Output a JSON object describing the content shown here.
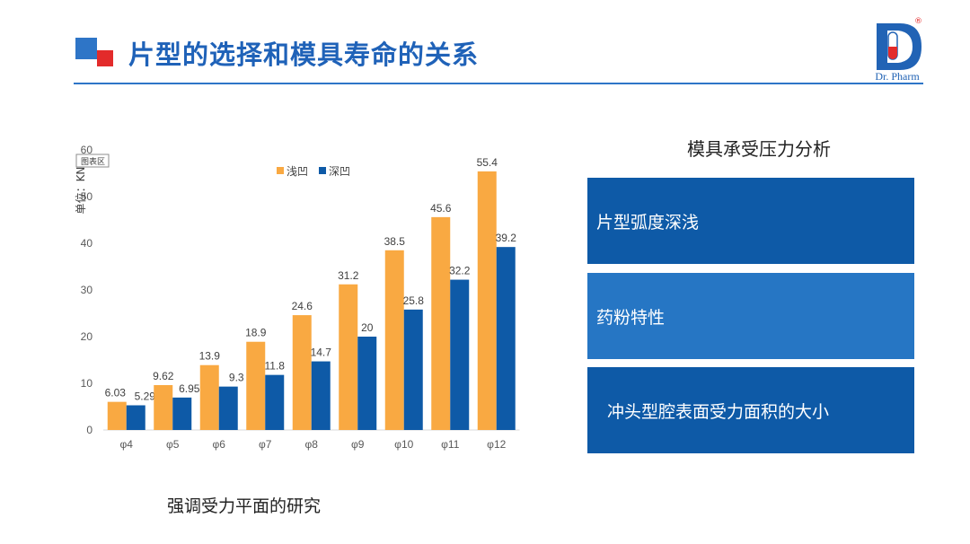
{
  "header": {
    "title": "片型的选择和模具寿命的关系",
    "logo_text": "Dr. Pharm",
    "logo_mark": "®"
  },
  "colors": {
    "accent_blue": "#2e75c7",
    "accent_red": "#e32b2b",
    "series_shallow": "#f9a942",
    "series_deep": "#0e5aa7",
    "box_dark": "#0e5aa7",
    "box_mid": "#2676c4"
  },
  "chart_data": {
    "type": "bar",
    "categories": [
      "φ4",
      "φ5",
      "φ6",
      "φ7",
      "φ8",
      "φ9",
      "φ10",
      "φ11",
      "φ12"
    ],
    "series": [
      {
        "name": "浅凹",
        "values": [
          6.03,
          9.62,
          13.9,
          18.9,
          24.6,
          31.2,
          38.5,
          45.6,
          55.4
        ],
        "labels": [
          "6.03",
          "9.62",
          "13.9",
          "18.9",
          "24.6",
          "31.2",
          "38.5",
          "45.6",
          "55.4"
        ]
      },
      {
        "name": "深凹",
        "values": [
          5.29,
          6.95,
          9.3,
          11.8,
          14.7,
          20,
          25.8,
          32.2,
          39.2
        ],
        "labels": [
          "5.29",
          "6.95",
          "9.3",
          "11.8",
          "14.7",
          "20",
          "25.8",
          "32.2",
          "39.2"
        ]
      }
    ],
    "ylim": [
      0,
      60
    ],
    "yticks": [
      0,
      10,
      20,
      30,
      40,
      50,
      60
    ],
    "ylabel": "单位：KN",
    "area_tag": "图表区",
    "legend_position": "top",
    "grid": false
  },
  "caption": "强调受力平面的研究",
  "right_panel": {
    "title": "模具承受压力分析",
    "boxes": [
      "片型弧度深浅",
      "药粉特性",
      "冲头型腔表面受力面积的大小"
    ]
  }
}
